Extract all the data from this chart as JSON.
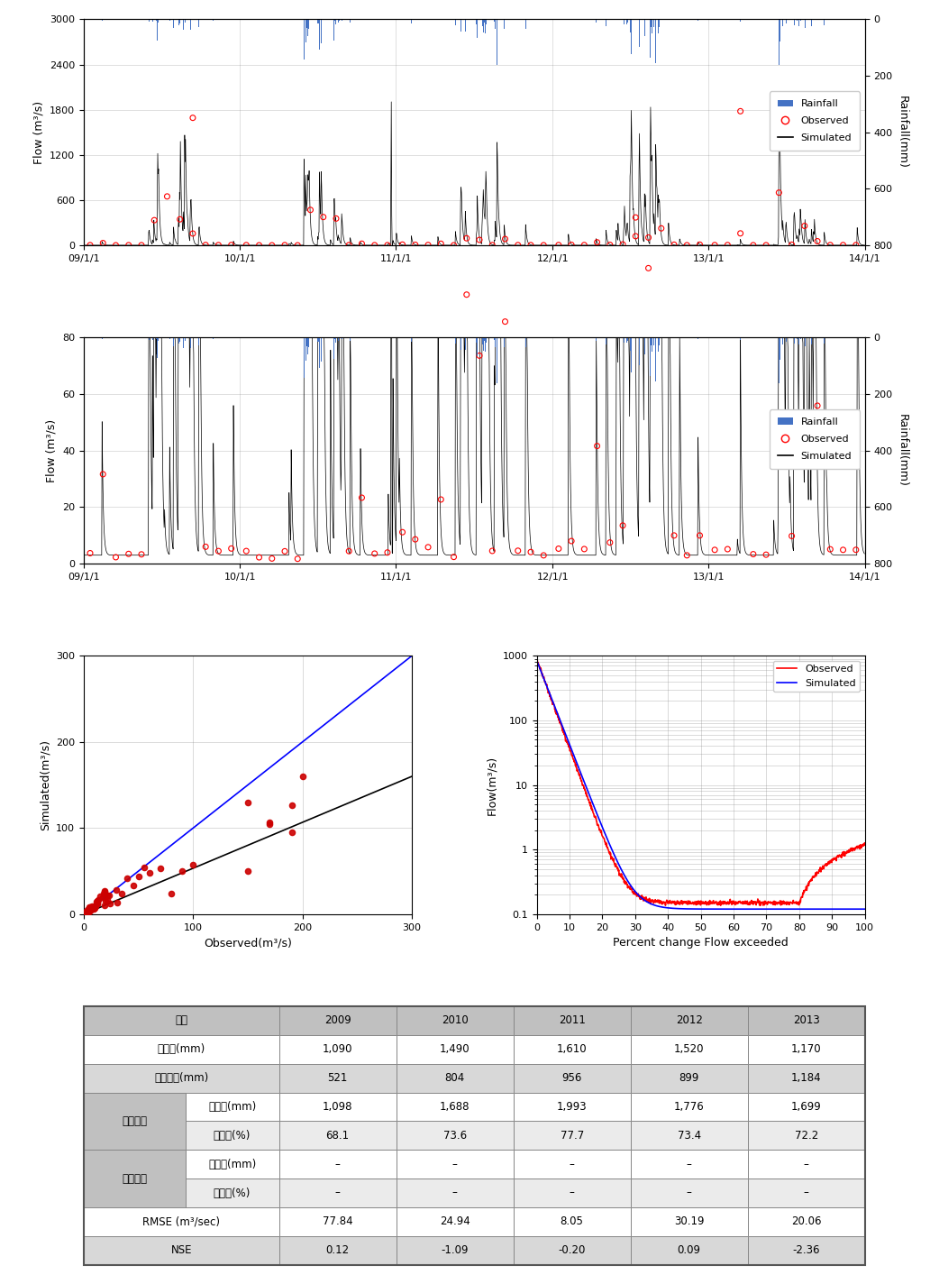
{
  "plot1": {
    "ylabel": "Flow (m³/s)",
    "ylabel2": "Rainfall(mm)",
    "ylim": [
      0,
      3000
    ],
    "ylim2": [
      0,
      800
    ],
    "yticks": [
      0,
      600,
      1200,
      1800,
      2400,
      3000
    ],
    "yticks2": [
      0,
      200,
      400,
      600,
      800
    ],
    "xtick_labels": [
      "09/1/1",
      "10/1/1",
      "11/1/1",
      "12/1/1",
      "13/1/1",
      "14/1/1"
    ]
  },
  "plot2": {
    "ylabel": "Flow (m³/s)",
    "ylabel2": "Rainfall(mm)",
    "ylim": [
      0,
      80
    ],
    "ylim2": [
      0,
      800
    ],
    "yticks": [
      0,
      20,
      40,
      60,
      80
    ],
    "yticks2": [
      0,
      200,
      400,
      600,
      800
    ],
    "xtick_labels": [
      "09/1/1",
      "10/1/1",
      "11/1/1",
      "12/1/1",
      "13/1/1",
      "14/1/1"
    ]
  },
  "scatter": {
    "xlabel": "Observed(m³/s)",
    "ylabel": "Simulated(m³/s)",
    "xlim": [
      0,
      300
    ],
    "ylim": [
      0,
      300
    ],
    "xticks": [
      0,
      100,
      200,
      300
    ],
    "yticks": [
      0,
      100,
      200,
      300
    ]
  },
  "fdc": {
    "xlabel": "Percent change Flow exceeded",
    "ylabel": "Flow(m³/s)",
    "xlim": [
      0,
      100
    ],
    "xticks": [
      0,
      10,
      20,
      30,
      40,
      50,
      60,
      70,
      80,
      90,
      100
    ],
    "ylim_log": [
      0.1,
      1000
    ]
  },
  "table": {
    "years": [
      "2009",
      "2010",
      "2011",
      "2012",
      "2013"
    ],
    "rainfall": [
      "1,090",
      "1,490",
      "1,610",
      "1,520",
      "1,170"
    ],
    "external_inflow": [
      "521",
      "804",
      "956",
      "899",
      "1,184"
    ],
    "runoff_depth_sim": [
      "1,098",
      "1,688",
      "1,993",
      "1,776",
      "1,699"
    ],
    "runoff_rate_sim": [
      "68.1",
      "73.6",
      "77.7",
      "73.4",
      "72.2"
    ],
    "runoff_depth_obs": [
      "–",
      "–",
      "–",
      "–",
      "–"
    ],
    "runoff_rate_obs": [
      "–",
      "–",
      "–",
      "–",
      "–"
    ],
    "rmse": [
      "77.84",
      "24.94",
      "8.05",
      "30.19",
      "20.06"
    ],
    "nse": [
      "0.12",
      "-1.09",
      "-0.20",
      "0.09",
      "-2.36"
    ]
  },
  "colors": {
    "rainfall_bar": "#4472C4",
    "observed_marker": "#FF0000",
    "simulated_line": "#000000",
    "fdc_observed": "#FF0000",
    "fdc_simulated": "#0000FF",
    "scatter_dot": "#CC0000",
    "scatter_line1": "#0000FF",
    "scatter_line2": "#000000"
  }
}
